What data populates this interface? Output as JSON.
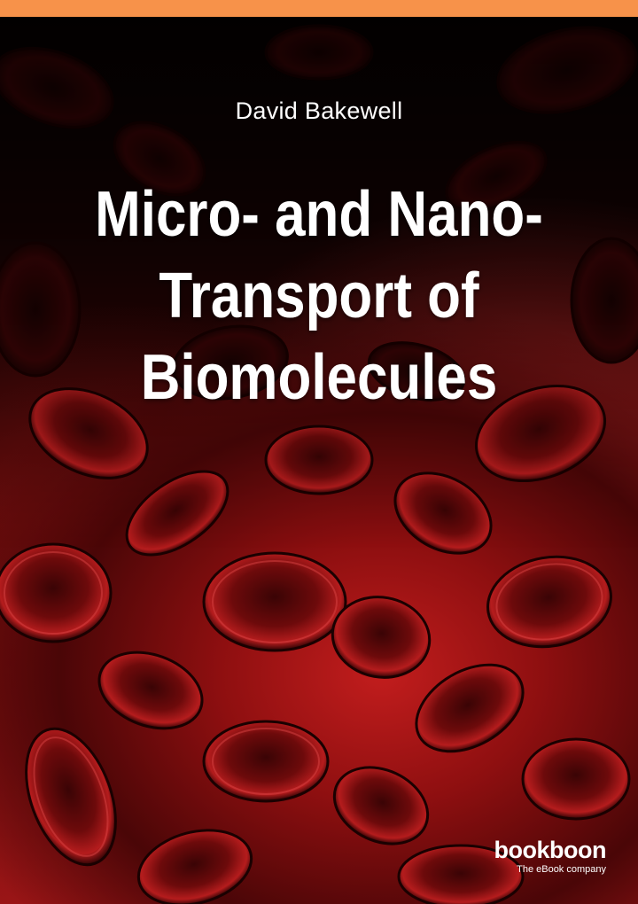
{
  "cover": {
    "author": "David Bakewell",
    "title_lines": [
      "Micro- and Nano-",
      "Transport of",
      "Biomolecules"
    ],
    "background_image": "red-blood-cells-illustration",
    "colors": {
      "top_bar": "#f7924a",
      "text": "#ffffff",
      "cell_dark": "#2a0304",
      "cell_mid": "#7a0c0d",
      "cell_bright": "#c92424"
    }
  },
  "publisher": {
    "name": "bookboon",
    "tagline": "The eBook company"
  }
}
